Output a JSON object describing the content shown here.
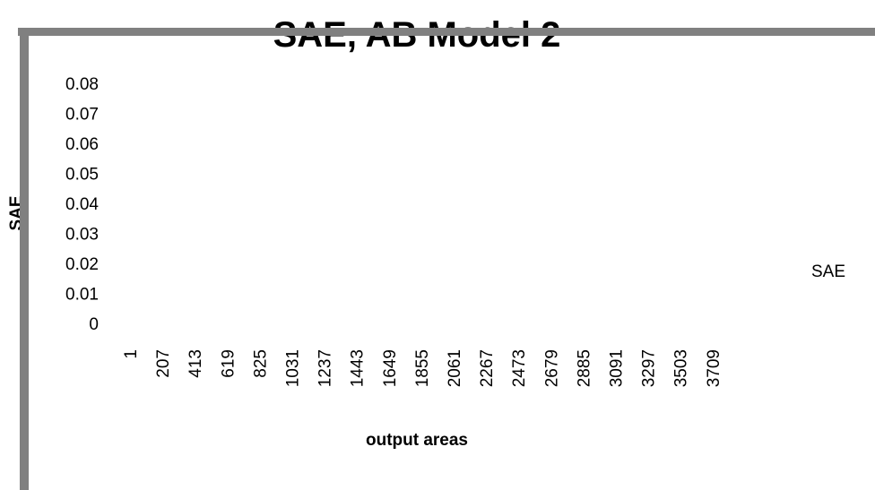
{
  "chart_data": {
    "type": "line",
    "title": "SAE, AB Model 2",
    "y_label": "SAE",
    "x_label": "output areas",
    "categories": [
      "1",
      "207",
      "413",
      "619",
      "825",
      "1031",
      "1237",
      "1443",
      "1649",
      "1855",
      "2061",
      "2267",
      "2473",
      "2679",
      "2885",
      "3091",
      "3297",
      "3503",
      "3709"
    ],
    "series": [
      {
        "name": "SAE",
        "values": [
          null,
          null,
          null,
          null,
          null,
          null,
          null,
          null,
          null,
          null,
          null,
          null,
          null,
          null,
          null,
          null,
          null,
          null,
          null
        ]
      }
    ],
    "ylim": [
      0,
      0.08
    ],
    "yticks": [
      0,
      0.01,
      0.02,
      0.03,
      0.04,
      0.05,
      0.06,
      0.07,
      0.08
    ],
    "grid": false,
    "legend": "right"
  }
}
